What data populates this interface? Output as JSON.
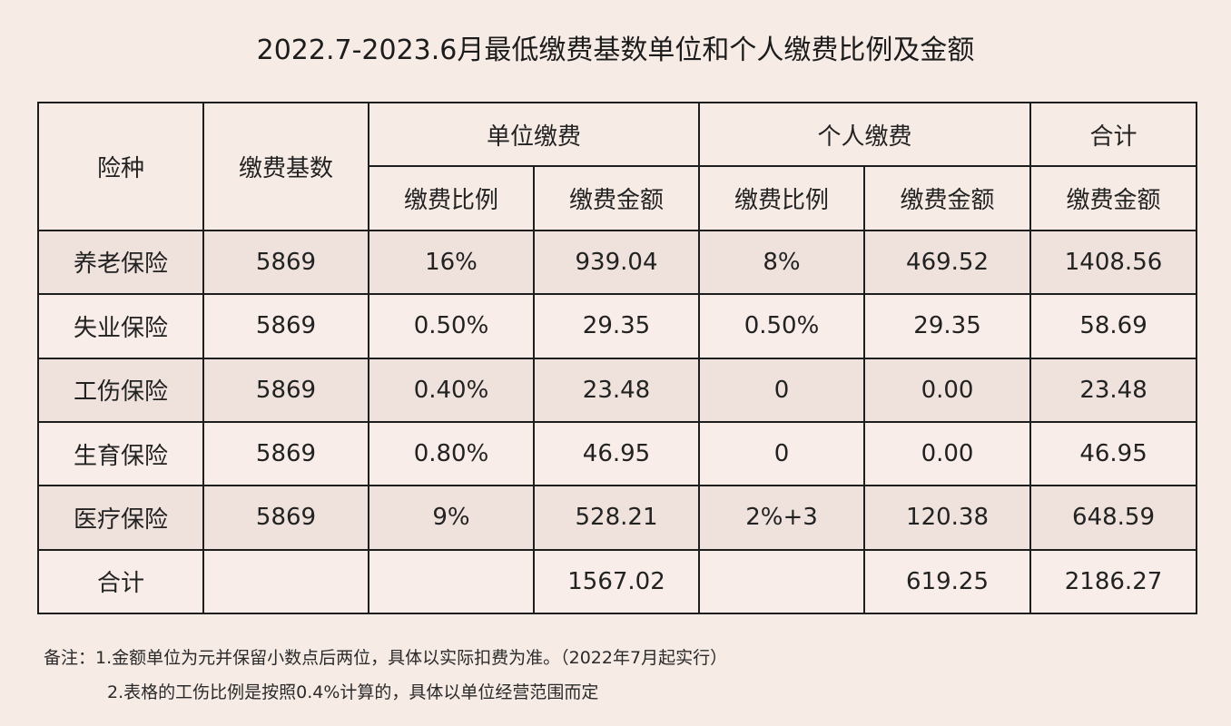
{
  "title": "2022.7-2023.6月最低缴费基数单位和个人缴费比例及金额",
  "table": {
    "headers": {
      "insurance_type": "险种",
      "base": "缴费基数",
      "employer_group": "单位缴费",
      "employee_group": "个人缴费",
      "total_group": "合计",
      "employer_rate": "缴费比例",
      "employer_amount": "缴费金额",
      "employee_rate": "缴费比例",
      "employee_amount": "缴费金额",
      "total_amount": "缴费金额"
    },
    "rows": [
      {
        "type": "养老保险",
        "base": "5869",
        "employer_rate": "16%",
        "employer_amount": "939.04",
        "employee_rate": "8%",
        "employee_amount": "469.52",
        "total": "1408.56"
      },
      {
        "type": "失业保险",
        "base": "5869",
        "employer_rate": "0.50%",
        "employer_amount": "29.35",
        "employee_rate": "0.50%",
        "employee_amount": "29.35",
        "total": "58.69"
      },
      {
        "type": "工伤保险",
        "base": "5869",
        "employer_rate": "0.40%",
        "employer_amount": "23.48",
        "employee_rate": "0",
        "employee_amount": "0.00",
        "total": "23.48"
      },
      {
        "type": "生育保险",
        "base": "5869",
        "employer_rate": "0.80%",
        "employer_amount": "46.95",
        "employee_rate": "0",
        "employee_amount": "0.00",
        "total": "46.95"
      },
      {
        "type": "医疗保险",
        "base": "5869",
        "employer_rate": "9%",
        "employer_amount": "528.21",
        "employee_rate": "2%+3",
        "employee_amount": "120.38",
        "total": "648.59"
      }
    ],
    "total_row": {
      "label": "合计",
      "employer_amount": "1567.02",
      "employee_amount": "619.25",
      "total": "2186.27"
    }
  },
  "notes": {
    "line1": "备注：1.金额单位为元并保留小数点后两位，具体以实际扣费为准。（2022年7月起实行）",
    "line2": "2.表格的工伤比例是按照0.4%计算的，具体以单位经营范围而定"
  }
}
